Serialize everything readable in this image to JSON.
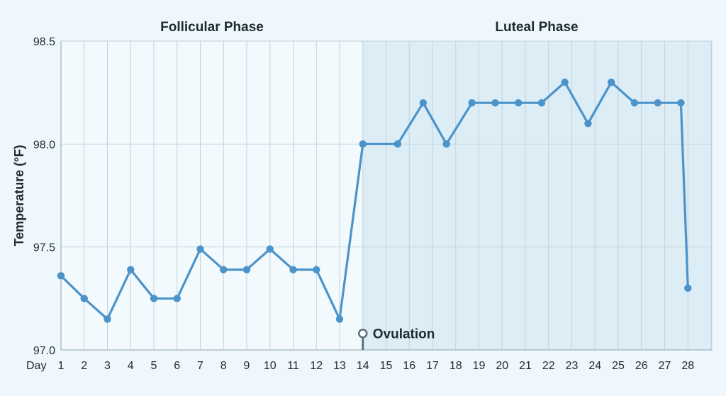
{
  "chart_data": {
    "type": "line",
    "xlabel": "Day",
    "ylabel": "Temperature (°F)",
    "x": [
      1,
      2,
      3,
      4,
      5,
      6,
      7,
      8,
      9,
      10,
      11,
      12,
      13,
      14,
      15,
      16,
      17,
      18,
      19,
      20,
      21,
      22,
      23,
      24,
      25,
      26,
      27,
      28
    ],
    "x_tick_labels": [
      "1",
      "2",
      "3",
      "4",
      "5",
      "6",
      "7",
      "8",
      "9",
      "10",
      "11",
      "12",
      "13",
      "14",
      "15",
      "16",
      "17",
      "18",
      "19",
      "20",
      "21",
      "22",
      "23",
      "24",
      "25",
      "26",
      "27",
      "28"
    ],
    "point_x": [
      1,
      2,
      3,
      4,
      5,
      6,
      7,
      8,
      9,
      10,
      11,
      12,
      13,
      14,
      15.5,
      16.6,
      17.6,
      18.7,
      19.7,
      20.7,
      21.7,
      22.7,
      23.7,
      24.7,
      25.7,
      26.7,
      27.7,
      28
    ],
    "series": [
      {
        "values": [
          97.36,
          97.25,
          97.15,
          97.39,
          97.25,
          97.25,
          97.49,
          97.39,
          97.39,
          97.49,
          97.39,
          97.39,
          97.15,
          98.0,
          98.0,
          98.2,
          98.0,
          98.2,
          98.2,
          98.2,
          98.2,
          98.3,
          98.1,
          98.3,
          98.2,
          98.2,
          98.2,
          97.3
        ],
        "color": "#4b93c9"
      }
    ],
    "ylim": [
      97.0,
      98.5
    ],
    "y_ticks": [
      "97.0",
      "97.5",
      "98.0",
      "98.5"
    ],
    "grid": true,
    "phases": [
      {
        "label": "Follicular Phase",
        "start_day": 1,
        "end_day": 14,
        "color": "#f2fafd"
      },
      {
        "label": "Luteal Phase",
        "start_day": 14,
        "end_day": 29.8,
        "color": "#dcedf6"
      }
    ],
    "annotations": [
      {
        "label": "Ovulation",
        "day": 14,
        "value": 97.08
      }
    ]
  }
}
